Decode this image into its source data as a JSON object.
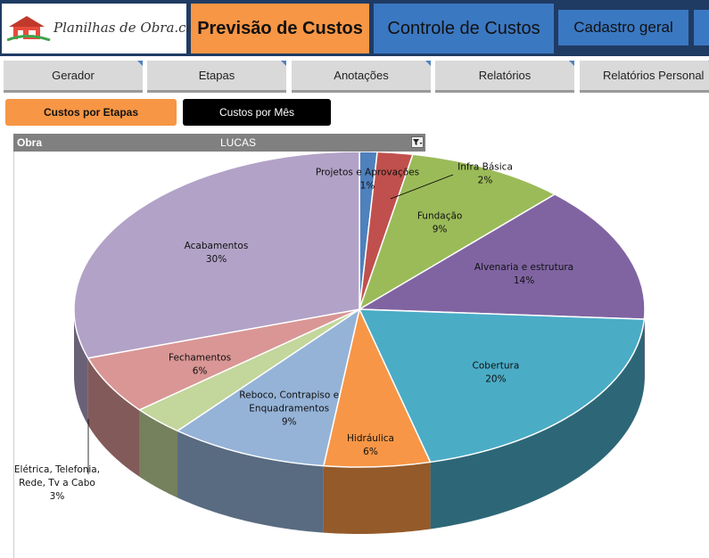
{
  "header": {
    "logo_text": "Planilhas de Obra.com",
    "nav_primary_active": "Previsão de Custos",
    "nav_primary_2": "Controle de Custos",
    "nav_primary_3": "Cadastro geral"
  },
  "tabs": [
    {
      "label": "Gerador"
    },
    {
      "label": "Etapas"
    },
    {
      "label": "Anotações"
    },
    {
      "label": "Relatórios"
    },
    {
      "label": "Relatórios Personal"
    }
  ],
  "subnav": {
    "etapas_label": "Custos por Etapas",
    "mes_label": "Custos por Mês"
  },
  "filter": {
    "label": "Obra",
    "value": "LUCAS"
  },
  "colors": {
    "header_bg": "#1f3b63",
    "orange": "#f79645",
    "blue": "#3b78c2"
  },
  "chart_data": {
    "type": "pie",
    "style": "3d",
    "title": "",
    "slices": [
      {
        "name": "Projetos e Aprovações",
        "label_lines": [
          "Projetos e Aprovações"
        ],
        "value": 1,
        "label": "1%",
        "color": "#4f81bd"
      },
      {
        "name": "Infra Básica",
        "label_lines": [
          "Infra Básica"
        ],
        "value": 2,
        "label": "2%",
        "color": "#c0504d"
      },
      {
        "name": "Fundação",
        "label_lines": [
          "Fundação"
        ],
        "value": 9,
        "label": "9%",
        "color": "#9bbb59"
      },
      {
        "name": "Alvenaria e estrutura",
        "label_lines": [
          "Alvenaria e estrutura"
        ],
        "value": 14,
        "label": "14%",
        "color": "#8064a2"
      },
      {
        "name": "Cobertura",
        "label_lines": [
          "Cobertura"
        ],
        "value": 20,
        "label": "20%",
        "color": "#4bacc6"
      },
      {
        "name": "Hidráulica",
        "label_lines": [
          "Hidráulica"
        ],
        "value": 6,
        "label": "6%",
        "color": "#f79646"
      },
      {
        "name": "Reboco, Contrapiso e Enquadramentos",
        "label_lines": [
          "Reboco, Contrapiso e",
          "Enquadramentos"
        ],
        "value": 9,
        "label": "9%",
        "color": "#95b3d7"
      },
      {
        "name": "Elétrica, Telefonia, Rede, Tv a Cabo",
        "label_lines": [
          "Elétrica, Telefonia,",
          "Rede, Tv a Cabo"
        ],
        "value": 3,
        "label": "3%",
        "color": "#c3d69b"
      },
      {
        "name": "Fechamentos",
        "label_lines": [
          "Fechamentos"
        ],
        "value": 6,
        "label": "6%",
        "color": "#d99694"
      },
      {
        "name": "Acabamentos",
        "label_lines": [
          "Acabamentos"
        ],
        "value": 30,
        "label": "30%",
        "color": "#b2a2c7"
      }
    ]
  }
}
